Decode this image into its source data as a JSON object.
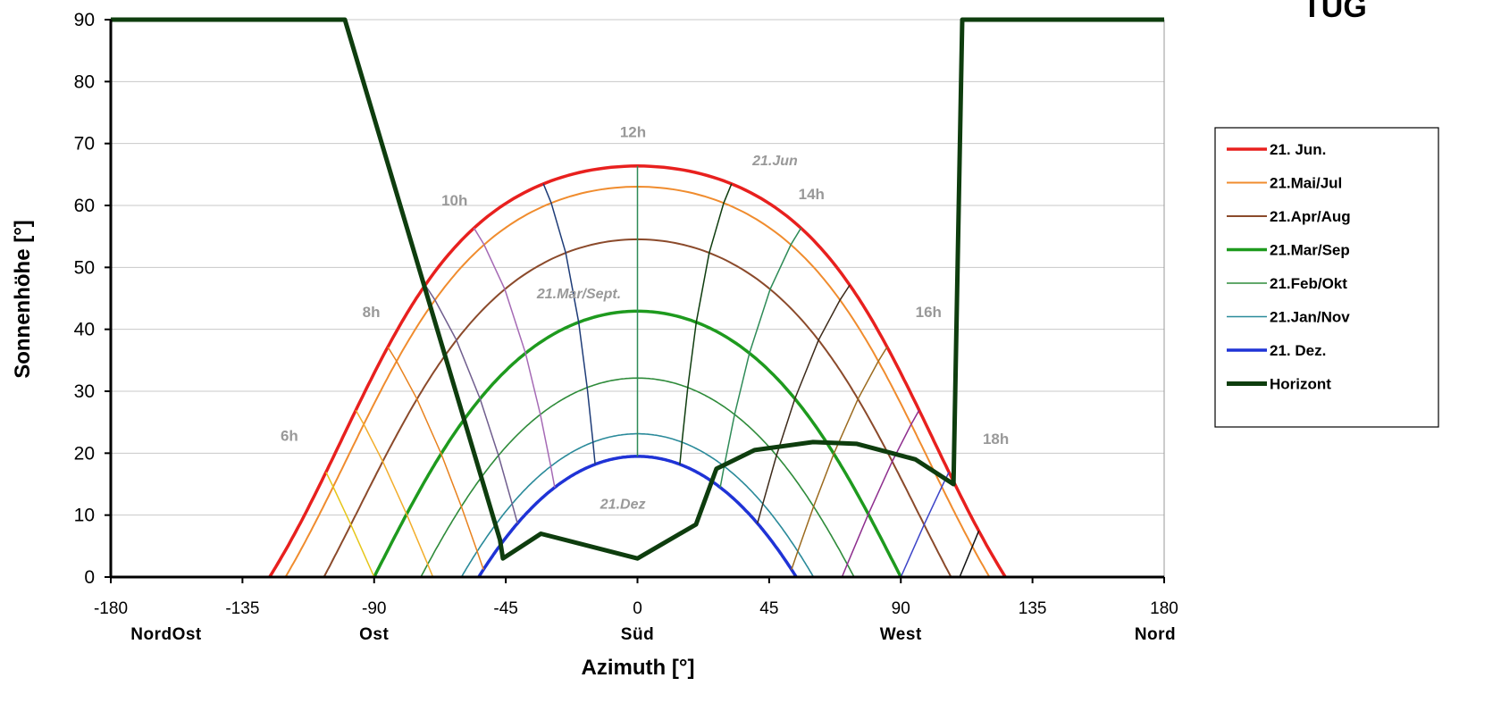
{
  "chart_data": {
    "type": "line",
    "corner_text": "TUG",
    "xlabel": "Azimuth [°]",
    "ylabel": "Sonnenhöhe [°]",
    "xlim": [
      -180,
      180
    ],
    "ylim": [
      0,
      90
    ],
    "x_ticks": [
      -180,
      -135,
      -90,
      -45,
      0,
      45,
      90,
      135,
      180
    ],
    "y_ticks": [
      0,
      10,
      20,
      30,
      40,
      50,
      60,
      70,
      80,
      90
    ],
    "direction_labels": [
      {
        "x": -180,
        "text": "NordOst"
      },
      {
        "x": -90,
        "text": "Ost"
      },
      {
        "x": 0,
        "text": "Süd"
      },
      {
        "x": 90,
        "text": "West"
      },
      {
        "x": 180,
        "text": "Nord"
      }
    ],
    "grid": "horizontal",
    "legend_position": "right",
    "series": [
      {
        "name": "21. Jun.",
        "color": "#e8201e",
        "width": 3.5,
        "decl": 23.44
      },
      {
        "name": "21.Mai/Jul",
        "color": "#f08c2e",
        "width": 2,
        "decl": 20.1
      },
      {
        "name": "21.Apr/Aug",
        "color": "#8b4a2b",
        "width": 2,
        "decl": 11.6
      },
      {
        "name": "21.Mar/Sep",
        "color": "#1e9a1e",
        "width": 3.5,
        "decl": 0
      },
      {
        "name": "21.Feb/Okt",
        "color": "#2e8b3a",
        "width": 1.6,
        "decl": -10.8
      },
      {
        "name": "21.Jan/Nov",
        "color": "#2a8a9a",
        "width": 1.6,
        "decl": -19.8
      },
      {
        "name": "21. Dez.",
        "color": "#1f33d6",
        "width": 3.5,
        "decl": -23.44
      }
    ],
    "horizon": {
      "name": "Horizont",
      "color": "#0e3d0e",
      "points": [
        [
          -180,
          90
        ],
        [
          -100,
          90
        ],
        [
          -47,
          6
        ],
        [
          -46,
          3
        ],
        [
          -33,
          7
        ],
        [
          0,
          3
        ],
        [
          20,
          8.5
        ],
        [
          27,
          17.5
        ],
        [
          40,
          20.5
        ],
        [
          60,
          21.8
        ],
        [
          75,
          21.5
        ],
        [
          95,
          19
        ],
        [
          108,
          15
        ],
        [
          111,
          90
        ],
        [
          180,
          90
        ]
      ]
    },
    "hour_lines": [
      {
        "hour": 6,
        "color": "#e6c619"
      },
      {
        "hour": 7,
        "color": "#f2ae2c"
      },
      {
        "hour": 8,
        "color": "#e8821e"
      },
      {
        "hour": 9,
        "color": "#705e8e"
      },
      {
        "hour": 10,
        "color": "#a56ab5"
      },
      {
        "hour": 11,
        "color": "#1e3c78"
      },
      {
        "hour": 12,
        "color": "#2e8b57"
      },
      {
        "hour": 13,
        "color": "#0f3d0f"
      },
      {
        "hour": 14,
        "color": "#2e8b57"
      },
      {
        "hour": 15,
        "color": "#3d2a1a"
      },
      {
        "hour": 16,
        "color": "#9b6a1e"
      },
      {
        "hour": 17,
        "color": "#8e2e8e"
      },
      {
        "hour": 18,
        "color": "#3d44c8"
      },
      {
        "hour": 19,
        "color": "#111111"
      },
      {
        "hour": 20,
        "color": "#44ee22"
      },
      {
        "hour": 21,
        "color": "#e8201e"
      }
    ],
    "hour_labels": [
      {
        "text": "6h",
        "x": -122,
        "y": 22
      },
      {
        "text": "8h",
        "x": -94,
        "y": 42
      },
      {
        "text": "10h",
        "x": -67,
        "y": 60
      },
      {
        "text": "12h",
        "x": -6,
        "y": 71
      },
      {
        "text": "14h",
        "x": 55,
        "y": 61
      },
      {
        "text": "16h",
        "x": 95,
        "y": 42
      },
      {
        "text": "18h",
        "x": 118,
        "y": 21.5
      }
    ],
    "date_labels": [
      {
        "text": "21.Jun",
        "x": 47,
        "y": 66.5
      },
      {
        "text": "21.Mar/Sept.",
        "x": -20,
        "y": 45
      },
      {
        "text": "21.Dez",
        "x": -5,
        "y": 11
      }
    ]
  }
}
